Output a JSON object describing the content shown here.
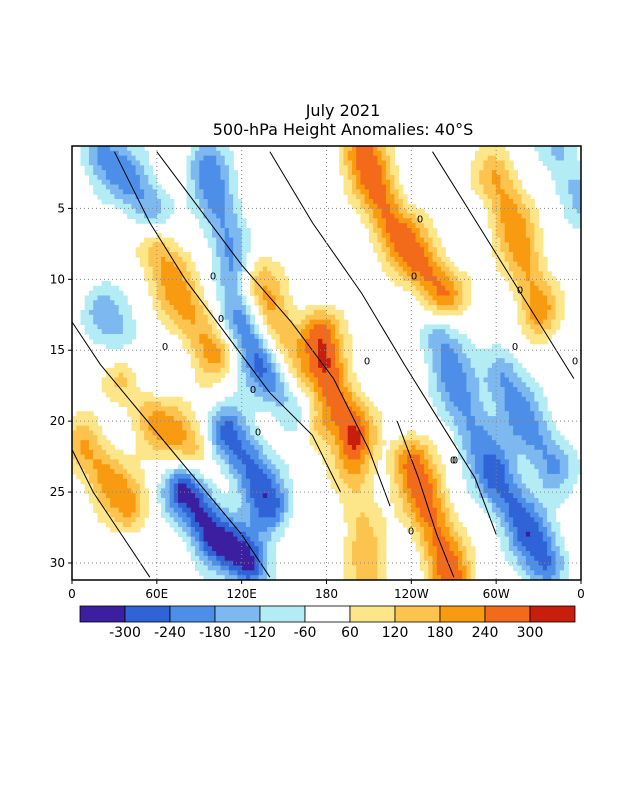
{
  "title": {
    "line1": "July 2021",
    "line2": "500-hPa Height Anomalies: 40°S"
  },
  "chart_data": {
    "type": "heatmap",
    "subtype": "hovmoller",
    "x_tick_labels": [
      "0",
      "60E",
      "120E",
      "180",
      "120W",
      "60W",
      "0"
    ],
    "x_ticks_deg_east": [
      0,
      60,
      120,
      180,
      240,
      300,
      360
    ],
    "y_tick_labels": [
      "5",
      "10",
      "15",
      "20",
      "25",
      "30"
    ],
    "y_ticks": [
      5,
      10,
      15,
      20,
      25,
      30
    ],
    "xlim": [
      0,
      360
    ],
    "ylim": [
      1,
      31
    ],
    "y_reversed": true,
    "grid": "dotted",
    "contour_label": "0",
    "color_levels": [
      -300,
      -240,
      -180,
      -120,
      -60,
      60,
      120,
      180,
      240,
      300
    ],
    "colorbar_labels": [
      "-300",
      "-240",
      "-180",
      "-120",
      "-60",
      "60",
      "120",
      "180",
      "240",
      "300"
    ],
    "colors": [
      "#3b1fa0",
      "#2f63d6",
      "#4d8fe8",
      "#7db8f0",
      "#b4ecf6",
      "#ffffff",
      "#fde68a",
      "#fcc44e",
      "#f99b10",
      "#f26a1a",
      "#c81e0c"
    ],
    "anomaly_features": [
      {
        "sign": "positive",
        "peak": 240,
        "path": [
          [
            205,
            1
          ],
          [
            225,
            6
          ],
          [
            262,
            11
          ]
        ]
      },
      {
        "sign": "positive",
        "peak": 240,
        "path": [
          [
            175,
            14
          ],
          [
            186,
            18
          ],
          [
            200,
            21
          ]
        ]
      },
      {
        "sign": "positive",
        "peak": 240,
        "path": [
          [
            240,
            23
          ],
          [
            255,
            27
          ],
          [
            268,
            31
          ]
        ]
      },
      {
        "sign": "positive",
        "peak": 180,
        "path": [
          [
            300,
            3
          ],
          [
            315,
            7
          ],
          [
            330,
            12
          ]
        ]
      },
      {
        "sign": "positive",
        "peak": 180,
        "path": [
          [
            130,
            10
          ],
          [
            150,
            15
          ],
          [
            170,
            20
          ]
        ]
      },
      {
        "sign": "positive",
        "peak": 180,
        "path": [
          [
            60,
            8
          ],
          [
            80,
            12
          ],
          [
            100,
            15
          ]
        ]
      },
      {
        "sign": "positive",
        "peak": 180,
        "path": [
          [
            40,
            17
          ],
          [
            60,
            20
          ],
          [
            85,
            22
          ]
        ]
      },
      {
        "sign": "positive",
        "peak": 180,
        "path": [
          [
            10,
            22
          ],
          [
            25,
            24
          ],
          [
            40,
            26
          ]
        ]
      },
      {
        "sign": "positive",
        "peak": 120,
        "path": [
          [
            200,
            24
          ],
          [
            205,
            28
          ],
          [
            210,
            31
          ]
        ]
      },
      {
        "sign": "negative",
        "peak": -240,
        "path": [
          [
            120,
            13
          ],
          [
            135,
            16
          ],
          [
            160,
            19
          ]
        ]
      },
      {
        "sign": "negative",
        "peak": -300,
        "path": [
          [
            80,
            25
          ],
          [
            100,
            28
          ],
          [
            125,
            30
          ]
        ]
      },
      {
        "sign": "negative",
        "peak": -240,
        "path": [
          [
            110,
            21
          ],
          [
            125,
            23
          ],
          [
            140,
            26
          ]
        ]
      },
      {
        "sign": "negative",
        "peak": -240,
        "path": [
          [
            300,
            24
          ],
          [
            318,
            27
          ],
          [
            335,
            30
          ]
        ]
      },
      {
        "sign": "negative",
        "peak": -180,
        "path": [
          [
            95,
            2
          ],
          [
            105,
            5
          ],
          [
            115,
            9
          ]
        ]
      },
      {
        "sign": "negative",
        "peak": -180,
        "path": [
          [
            20,
            1
          ],
          [
            40,
            3
          ],
          [
            55,
            5
          ]
        ]
      },
      {
        "sign": "negative",
        "peak": -180,
        "path": [
          [
            260,
            14
          ],
          [
            270,
            17
          ],
          [
            285,
            21
          ]
        ]
      },
      {
        "sign": "negative",
        "peak": -180,
        "path": [
          [
            305,
            17
          ],
          [
            320,
            20
          ],
          [
            340,
            23
          ]
        ]
      },
      {
        "sign": "negative",
        "peak": -120,
        "path": [
          [
            20,
            12
          ],
          [
            35,
            14
          ],
          [
            50,
            17
          ]
        ]
      },
      {
        "sign": "negative",
        "peak": -120,
        "path": [
          [
            345,
            1
          ],
          [
            352,
            3
          ],
          [
            360,
            4
          ]
        ]
      }
    ]
  }
}
